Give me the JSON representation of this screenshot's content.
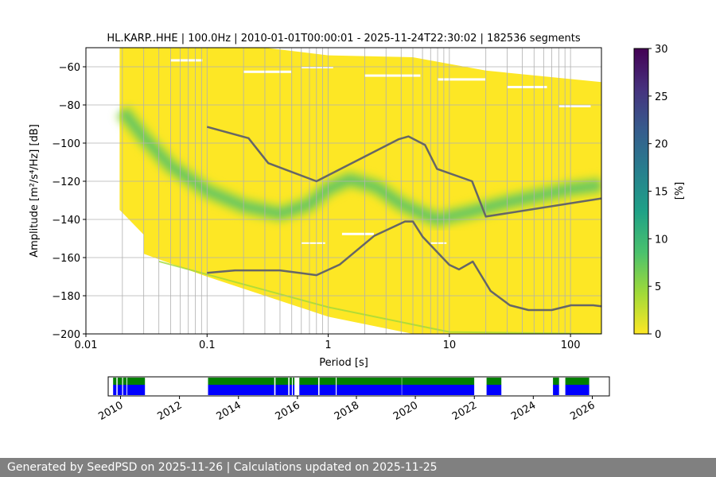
{
  "chart_data": [
    {
      "type": "heatmap",
      "title": "HL.KARP..HHE | 100.0Hz | 2010-01-01T00:00:01 - 2025-11-24T22:30:02 | 182536 segments",
      "xlabel": "Period [s]",
      "ylabel": "Amplitude [m²/s⁴/Hz] [dB]",
      "xscale": "log",
      "xlim": [
        0.01,
        180
      ],
      "ylim": [
        -200,
        -50
      ],
      "xticks": [
        0.01,
        0.1,
        1,
        10,
        100
      ],
      "xtick_labels": [
        "0.01",
        "0.1",
        "1",
        "10",
        "100"
      ],
      "yticks": [
        -60,
        -80,
        -100,
        -120,
        -140,
        -160,
        -180,
        -200
      ],
      "ytick_labels": [
        "−60",
        "−80",
        "−100",
        "−120",
        "−140",
        "−160",
        "−180",
        "−200"
      ],
      "grid": true,
      "colormap": "viridis_r",
      "colorbar": {
        "label": "[%]",
        "range": [
          0,
          30
        ],
        "ticks": [
          0,
          5,
          10,
          15,
          20,
          25,
          30
        ],
        "tick_labels": [
          "0",
          "5",
          "10",
          "15",
          "20",
          "25",
          "30"
        ],
        "colors": [
          "#fde725",
          "#a0da39",
          "#4ac16d",
          "#1fa187",
          "#277f8e",
          "#365c8d",
          "#46327e",
          "#440154"
        ]
      },
      "mode_ridge": {
        "period": [
          0.02,
          0.03,
          0.05,
          0.1,
          0.2,
          0.4,
          0.7,
          1,
          1.5,
          2.5,
          4,
          5.5,
          8,
          15,
          30,
          60,
          100,
          180
        ],
        "amplitude": [
          -83,
          -97,
          -112,
          -125,
          -133,
          -137,
          -132,
          -124,
          -119,
          -123,
          -132,
          -136,
          -140,
          -136,
          -131,
          -127,
          -124,
          -122
        ]
      },
      "noise_models": {
        "high": {
          "period": [
            0.1,
            0.22,
            0.32,
            0.8,
            3.8,
            4.6,
            6.3,
            7.9,
            15.4,
            20,
            180
          ],
          "amplitude": [
            -91.5,
            -97.4,
            -110.5,
            -120,
            -98,
            -96.5,
            -101,
            -113.5,
            -120,
            -138.5,
            -129
          ]
        },
        "low": {
          "period": [
            0.1,
            0.17,
            0.4,
            0.8,
            1.24,
            2.4,
            4.3,
            5,
            6,
            10,
            12,
            15.6,
            21.9,
            31.6,
            45,
            70,
            101,
            154,
            180
          ],
          "amplitude": [
            -168,
            -166.7,
            -166.7,
            -169.2,
            -163.7,
            -148.6,
            -141.1,
            -141.1,
            -149,
            -163.8,
            -166.2,
            -162.1,
            -177.5,
            -185,
            -187.5,
            -187.5,
            -185,
            -185,
            -185.5
          ]
        }
      }
    },
    {
      "type": "timeline",
      "xlim": [
        "2009-08-01",
        "2026-08-01"
      ],
      "xtick_labels": [
        "2010",
        "2012",
        "2014",
        "2016",
        "2018",
        "2020",
        "2022",
        "2024",
        "2026"
      ],
      "series": [
        {
          "color": "#008000",
          "intervals": [
            [
              "2009-10-01",
              "2009-11-10"
            ],
            [
              "2009-11-25",
              "2010-01-20"
            ],
            [
              "2010-02-01",
              "2010-03-15"
            ],
            [
              "2010-03-25",
              "2010-10-31"
            ],
            [
              "2012-12-20",
              "2015-03-20"
            ],
            [
              "2015-04-05",
              "2015-09-10"
            ],
            [
              "2015-09-25",
              "2015-10-25"
            ],
            [
              "2015-11-05",
              "2015-11-25"
            ],
            [
              "2016-01-25",
              "2016-09-15"
            ],
            [
              "2016-10-01",
              "2017-04-20"
            ],
            [
              "2017-05-01",
              "2019-07-15"
            ],
            [
              "2019-07-20",
              "2021-12-31"
            ],
            [
              "2022-06-01",
              "2022-12-01"
            ],
            [
              "2024-09-01",
              "2024-11-15"
            ],
            [
              "2025-02-01",
              "2025-11-24"
            ]
          ]
        },
        {
          "color": "#0000ff",
          "intervals": [
            [
              "2009-10-01",
              "2009-11-10"
            ],
            [
              "2009-11-25",
              "2010-01-20"
            ],
            [
              "2010-02-01",
              "2010-03-15"
            ],
            [
              "2010-03-25",
              "2010-10-31"
            ],
            [
              "2012-12-20",
              "2015-03-20"
            ],
            [
              "2015-04-05",
              "2015-09-10"
            ],
            [
              "2015-09-25",
              "2015-10-25"
            ],
            [
              "2015-11-05",
              "2015-11-25"
            ],
            [
              "2016-01-25",
              "2016-09-15"
            ],
            [
              "2016-10-01",
              "2017-04-20"
            ],
            [
              "2017-05-01",
              "2019-07-15"
            ],
            [
              "2019-07-20",
              "2021-12-31"
            ],
            [
              "2022-06-01",
              "2022-12-01"
            ],
            [
              "2024-09-01",
              "2024-11-15"
            ],
            [
              "2025-02-01",
              "2025-11-24"
            ]
          ]
        }
      ]
    }
  ],
  "footer": {
    "text": "Generated by SeedPSD on 2025-11-26 | Calculations updated on 2025-11-25"
  }
}
